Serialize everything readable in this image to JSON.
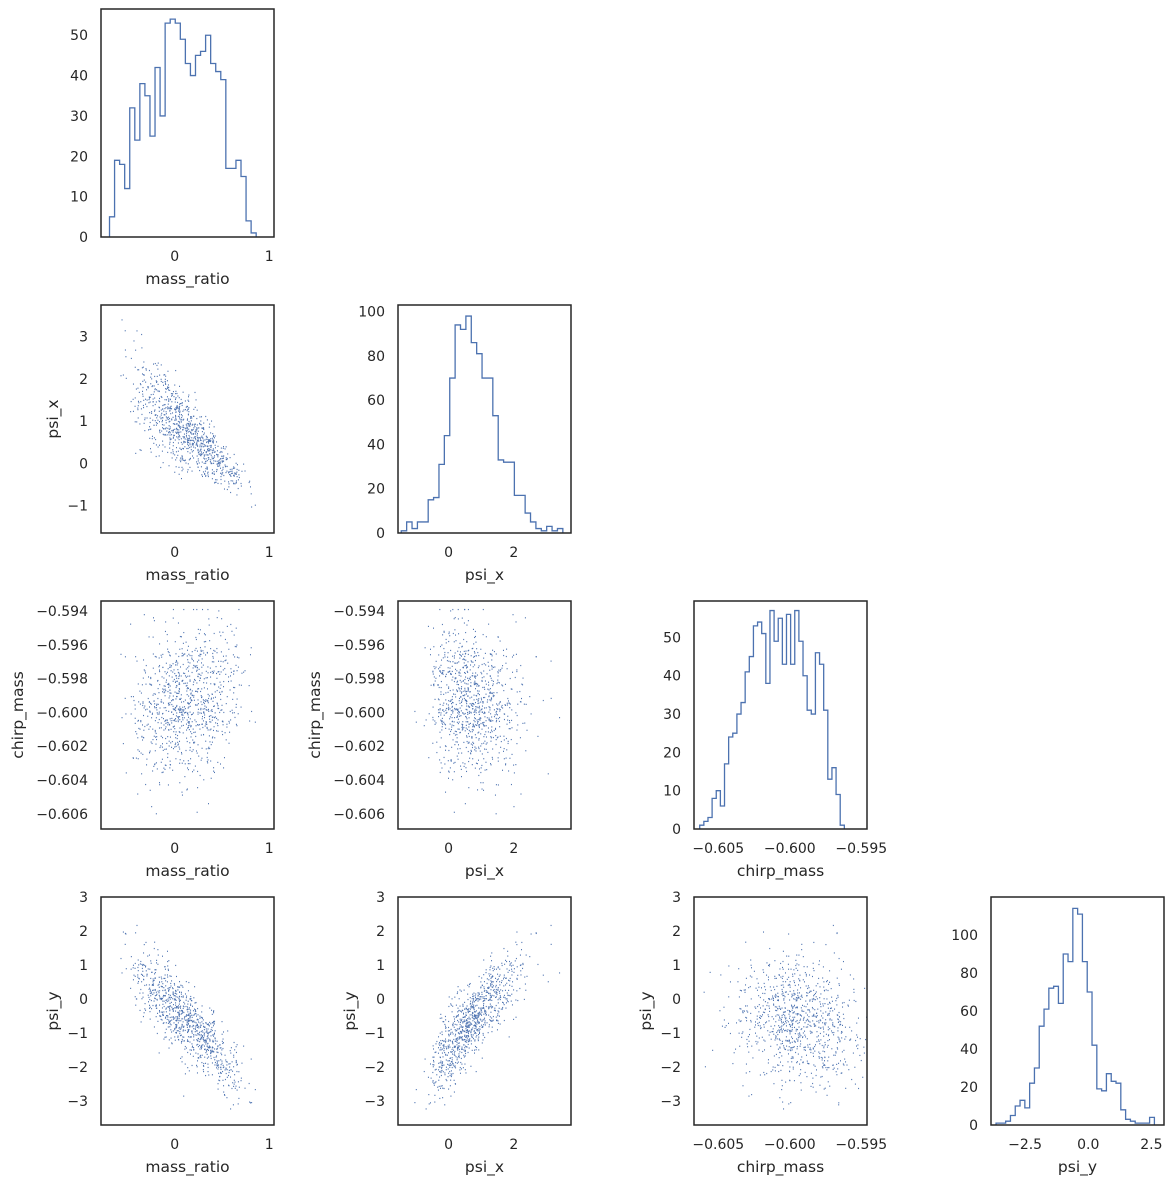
{
  "colors": {
    "series": "#4C72B0",
    "frame": "#262626",
    "text": "#262626",
    "background": "#ffffff"
  },
  "chart_data": [
    {
      "type": "histogram",
      "id": "hist-mass-ratio",
      "row": 0,
      "col": 0,
      "xlabel": "mass_ratio",
      "ylabel": "",
      "xlim": [
        -0.78,
        1.05
      ],
      "ylim": [
        0,
        56.5
      ],
      "xticks": [
        0,
        1
      ],
      "xtick_labels": [
        "0",
        "1"
      ],
      "yticks": [
        0,
        10,
        20,
        30,
        40,
        50
      ],
      "ytick_labels": [
        "0",
        "10",
        "20",
        "30",
        "40",
        "50"
      ],
      "bin_start": -0.69,
      "bin_width": 0.0535,
      "counts": [
        5,
        19,
        18,
        12,
        32,
        24,
        38,
        35,
        25,
        42,
        30,
        53,
        54,
        53,
        49,
        43,
        40,
        45,
        46,
        50,
        43,
        41,
        39,
        17,
        17,
        19,
        15,
        4,
        1
      ]
    },
    {
      "type": "scatter",
      "id": "scatter-psi-x-vs-mass-ratio",
      "row": 1,
      "col": 0,
      "xlabel": "mass_ratio",
      "ylabel": "psi_x",
      "xlim": [
        -0.78,
        1.05
      ],
      "ylim": [
        -1.65,
        3.75
      ],
      "xticks": [
        0,
        1
      ],
      "xtick_labels": [
        "0",
        "1"
      ],
      "yticks": [
        -1,
        0,
        1,
        2,
        3
      ],
      "ytick_labels": [
        "−1",
        "0",
        "1",
        "2",
        "3"
      ],
      "n_points": 950
    },
    {
      "type": "histogram",
      "id": "hist-psi-x",
      "row": 1,
      "col": 1,
      "xlabel": "psi_x",
      "ylabel": "",
      "xlim": [
        -1.55,
        3.75
      ],
      "ylim": [
        0,
        103
      ],
      "xticks": [
        0,
        2
      ],
      "xtick_labels": [
        "0",
        "2"
      ],
      "yticks": [
        0,
        20,
        40,
        60,
        80,
        100
      ],
      "ytick_labels": [
        "0",
        "20",
        "40",
        "60",
        "80",
        "100"
      ],
      "bin_start": -1.45,
      "bin_width": 0.165,
      "counts": [
        1,
        5,
        2,
        5,
        5,
        15,
        16,
        31,
        44,
        70,
        94,
        92,
        98,
        86,
        81,
        70,
        70,
        53,
        33,
        32,
        32,
        17,
        17,
        9,
        5,
        2,
        1,
        3,
        1,
        2
      ]
    },
    {
      "type": "scatter",
      "id": "scatter-chirp-mass-vs-mass-ratio",
      "row": 2,
      "col": 0,
      "xlabel": "mass_ratio",
      "ylabel": "chirp_mass",
      "xlim": [
        -0.78,
        1.05
      ],
      "ylim": [
        -0.6069,
        -0.5934
      ],
      "xticks": [
        0,
        1
      ],
      "xtick_labels": [
        "0",
        "1"
      ],
      "yticks": [
        -0.606,
        -0.604,
        -0.602,
        -0.6,
        -0.598,
        -0.596,
        -0.594
      ],
      "ytick_labels": [
        "−0.606",
        "−0.604",
        "−0.602",
        "−0.600",
        "−0.598",
        "−0.596",
        "−0.594"
      ],
      "n_points": 950
    },
    {
      "type": "scatter",
      "id": "scatter-chirp-mass-vs-psi-x",
      "row": 2,
      "col": 1,
      "xlabel": "psi_x",
      "ylabel": "chirp_mass",
      "xlim": [
        -1.55,
        3.75
      ],
      "ylim": [
        -0.6069,
        -0.5934
      ],
      "xticks": [
        0,
        2
      ],
      "xtick_labels": [
        "0",
        "2"
      ],
      "yticks": [
        -0.606,
        -0.604,
        -0.602,
        -0.6,
        -0.598,
        -0.596,
        -0.594
      ],
      "ytick_labels": [
        "−0.606",
        "−0.604",
        "−0.602",
        "−0.600",
        "−0.598",
        "−0.596",
        "−0.594"
      ],
      "n_points": 950
    },
    {
      "type": "histogram",
      "id": "hist-chirp-mass",
      "row": 2,
      "col": 2,
      "xlabel": "chirp_mass",
      "ylabel": "",
      "xlim": [
        -0.6067,
        -0.5946
      ],
      "ylim": [
        0,
        59.5
      ],
      "xticks": [
        -0.605,
        -0.6,
        -0.595
      ],
      "xtick_labels": [
        "−0.605",
        "−0.600",
        "−0.595"
      ],
      "yticks": [
        0,
        10,
        20,
        30,
        40,
        50
      ],
      "ytick_labels": [
        "0",
        "10",
        "20",
        "30",
        "40",
        "50"
      ],
      "bin_start": -0.6063,
      "bin_width": 0.000289,
      "counts": [
        1,
        2,
        3,
        8,
        10,
        6,
        17,
        24,
        25,
        30,
        33,
        41,
        45,
        53,
        54,
        51,
        38,
        57,
        49,
        55,
        43,
        56,
        43,
        57,
        49,
        40,
        31,
        30,
        46,
        43,
        31,
        13,
        16,
        9,
        1
      ]
    },
    {
      "type": "scatter",
      "id": "scatter-psi-y-vs-mass-ratio",
      "row": 3,
      "col": 0,
      "xlabel": "mass_ratio",
      "ylabel": "psi_y",
      "xlim": [
        -0.78,
        1.05
      ],
      "ylim": [
        -3.7,
        3.0
      ],
      "xticks": [
        0,
        1
      ],
      "xtick_labels": [
        "0",
        "1"
      ],
      "yticks": [
        -3,
        -2,
        -1,
        0,
        1,
        2,
        3
      ],
      "ytick_labels": [
        "−3",
        "−2",
        "−1",
        "0",
        "1",
        "2",
        "3"
      ],
      "n_points": 950
    },
    {
      "type": "scatter",
      "id": "scatter-psi-y-vs-psi-x",
      "row": 3,
      "col": 1,
      "xlabel": "psi_x",
      "ylabel": "psi_y",
      "xlim": [
        -1.55,
        3.75
      ],
      "ylim": [
        -3.7,
        3.0
      ],
      "xticks": [
        0,
        2
      ],
      "xtick_labels": [
        "0",
        "2"
      ],
      "yticks": [
        -3,
        -2,
        -1,
        0,
        1,
        2,
        3
      ],
      "ytick_labels": [
        "−3",
        "−2",
        "−1",
        "0",
        "1",
        "2",
        "3"
      ],
      "n_points": 950
    },
    {
      "type": "scatter",
      "id": "scatter-psi-y-vs-chirp-mass",
      "row": 3,
      "col": 2,
      "xlabel": "chirp_mass",
      "ylabel": "psi_y",
      "xlim": [
        -0.6067,
        -0.5946
      ],
      "ylim": [
        -3.7,
        3.0
      ],
      "xticks": [
        -0.605,
        -0.6,
        -0.595
      ],
      "xtick_labels": [
        "−0.605",
        "−0.600",
        "−0.595"
      ],
      "yticks": [
        -3,
        -2,
        -1,
        0,
        1,
        2,
        3
      ],
      "ytick_labels": [
        "−3",
        "−2",
        "−1",
        "0",
        "1",
        "2",
        "3"
      ],
      "n_points": 950
    },
    {
      "type": "histogram",
      "id": "hist-psi-y",
      "row": 3,
      "col": 3,
      "xlabel": "psi_y",
      "ylabel": "",
      "xlim": [
        -3.85,
        3.0
      ],
      "ylim": [
        0,
        120
      ],
      "xticks": [
        -2.5,
        0,
        2.5
      ],
      "xtick_labels": [
        "−2.5",
        "0.0",
        "2.5"
      ],
      "yticks": [
        0,
        20,
        40,
        60,
        80,
        100
      ],
      "ytick_labels": [
        "0",
        "20",
        "40",
        "60",
        "80",
        "100"
      ],
      "bin_start": -3.65,
      "bin_width": 0.19,
      "counts": [
        1,
        1,
        2,
        5,
        10,
        13,
        9,
        22,
        30,
        52,
        61,
        72,
        73,
        64,
        90,
        86,
        114,
        111,
        86,
        70,
        42,
        19,
        18,
        27,
        23,
        22,
        8,
        3,
        2,
        1,
        1,
        1,
        4
      ]
    }
  ]
}
